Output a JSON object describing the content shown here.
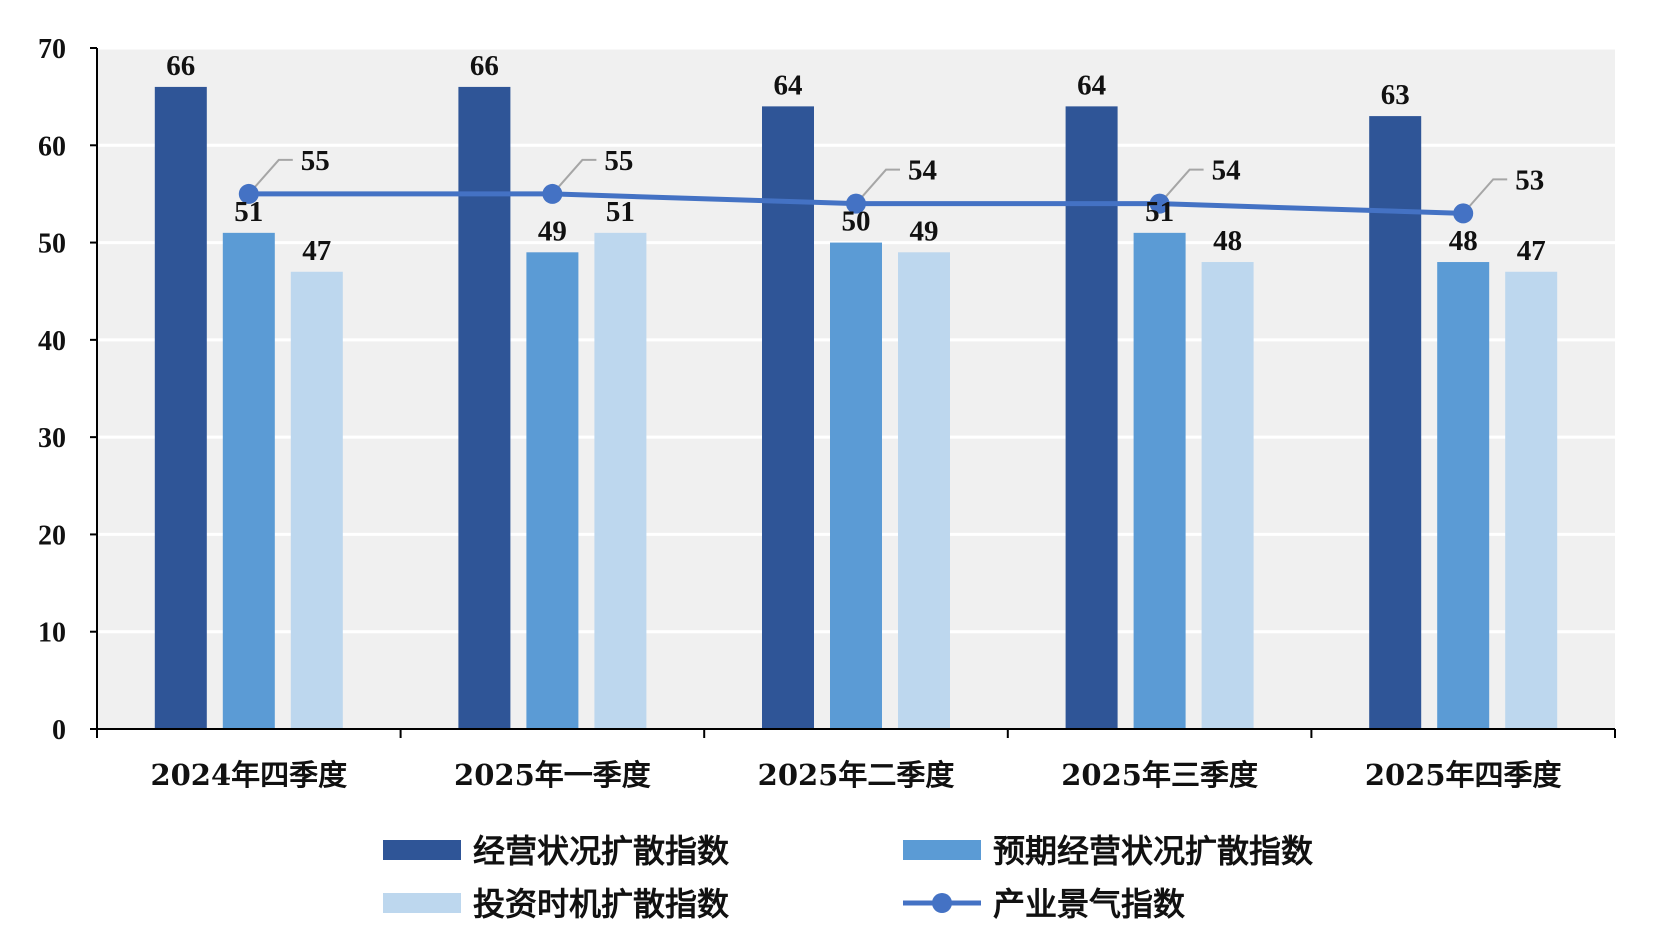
{
  "chart_data": {
    "type": "bar",
    "categories": [
      "2024年四季度",
      "2025年一季度",
      "2025年二季度",
      "2025年三季度",
      "2025年四季度"
    ],
    "ylim": [
      0,
      70
    ],
    "yticks": [
      0,
      10,
      20,
      30,
      40,
      50,
      60,
      70
    ],
    "grid": true,
    "legend_position": "bottom",
    "series": [
      {
        "name": "经营状况扩散指数",
        "kind": "bar",
        "color": "#2F5597",
        "values": [
          66,
          66,
          64,
          64,
          63
        ]
      },
      {
        "name": "预期经营状况扩散指数",
        "kind": "bar",
        "color": "#5B9BD5",
        "values": [
          51,
          49,
          50,
          51,
          48
        ]
      },
      {
        "name": "投资时机扩散指数",
        "kind": "bar",
        "color": "#BDD7EE",
        "values": [
          47,
          51,
          49,
          48,
          47
        ]
      },
      {
        "name": "产业景气指数",
        "kind": "line",
        "color": "#4472C4",
        "values": [
          55,
          55,
          54,
          54,
          53
        ]
      }
    ]
  }
}
